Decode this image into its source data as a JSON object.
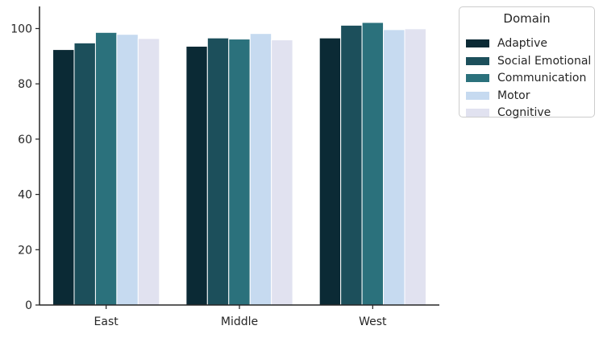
{
  "chart_data": {
    "type": "bar",
    "title": "",
    "xlabel": "",
    "ylabel": "",
    "categories": [
      "East",
      "Middle",
      "West"
    ],
    "ylim": [
      0,
      108
    ],
    "yticks": [
      0,
      20,
      40,
      60,
      80,
      100
    ],
    "grid": false,
    "legend_title": "Domain",
    "legend_position": "outside-right-top",
    "series": [
      {
        "name": "Adaptive",
        "color": "#0b2a35",
        "values": [
          92.4,
          93.6,
          96.6
        ]
      },
      {
        "name": "Social Emotional",
        "color": "#1c4f5b",
        "values": [
          94.8,
          96.6,
          101.2
        ]
      },
      {
        "name": "Communication",
        "color": "#2b717c",
        "values": [
          98.6,
          96.2,
          102.2
        ]
      },
      {
        "name": "Motor",
        "color": "#c6daf0",
        "values": [
          97.9,
          98.2,
          99.6
        ]
      },
      {
        "name": "Cognitive",
        "color": "#e1e2f0",
        "values": [
          96.4,
          95.9,
          99.9
        ]
      }
    ]
  }
}
